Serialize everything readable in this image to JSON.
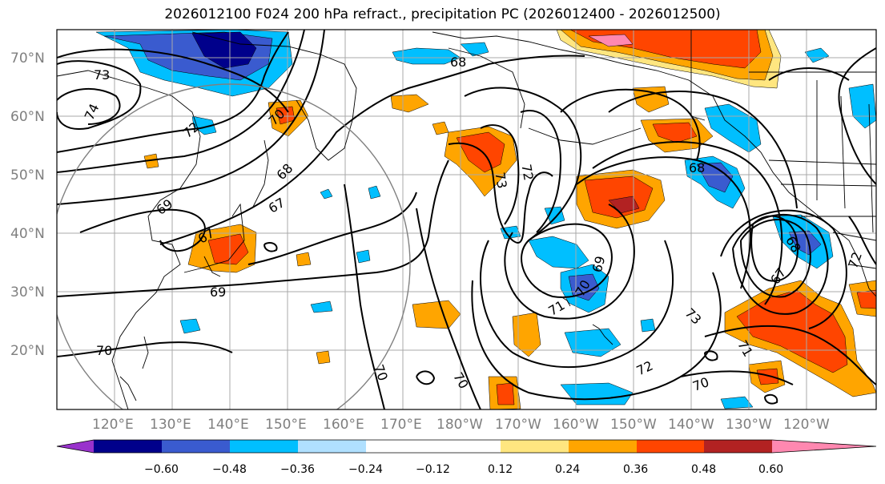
{
  "title": "2026012100 F024 200 hPa refract., precipitation PC (2026012400 - 2026012500)",
  "latitude_labels": [
    "70°N",
    "60°N",
    "50°N",
    "40°N",
    "30°N",
    "20°N"
  ],
  "longitude_labels": [
    "120°E",
    "130°E",
    "140°E",
    "150°E",
    "160°E",
    "170°E",
    "180°W",
    "170°W",
    "160°W",
    "150°W",
    "140°W",
    "130°W",
    "120°W"
  ],
  "contour_labels": [
    "73",
    "74",
    "72",
    "70",
    "68",
    "69",
    "67",
    "67",
    "69",
    "70",
    "70",
    "70",
    "68",
    "73",
    "72",
    "71",
    "70",
    "69",
    "73",
    "72",
    "70",
    "68",
    "68",
    "67",
    "72",
    "71"
  ],
  "colorbar": {
    "ticks": [
      "−0.60",
      "−0.48",
      "−0.36",
      "−0.24",
      "−0.12",
      "0.12",
      "0.24",
      "0.36",
      "0.48",
      "0.60"
    ],
    "colors": [
      "#9932CC",
      "#00008B",
      "#3A5BCF",
      "#00BFFF",
      "#B0E0FF",
      "#FFFFFF",
      "#FFE680",
      "#FFA500",
      "#FF4500",
      "#B22222",
      "#FF88B0"
    ]
  },
  "fill_colors": {
    "blue_light": "#B0E0FF",
    "blue": "#00BFFF",
    "blue_mid": "#3A5BCF",
    "blue_dark": "#00008B",
    "yellow": "#FFE680",
    "orange": "#FFA500",
    "red": "#FF4500",
    "dark_red": "#B22222",
    "pink": "#FF88B0"
  }
}
